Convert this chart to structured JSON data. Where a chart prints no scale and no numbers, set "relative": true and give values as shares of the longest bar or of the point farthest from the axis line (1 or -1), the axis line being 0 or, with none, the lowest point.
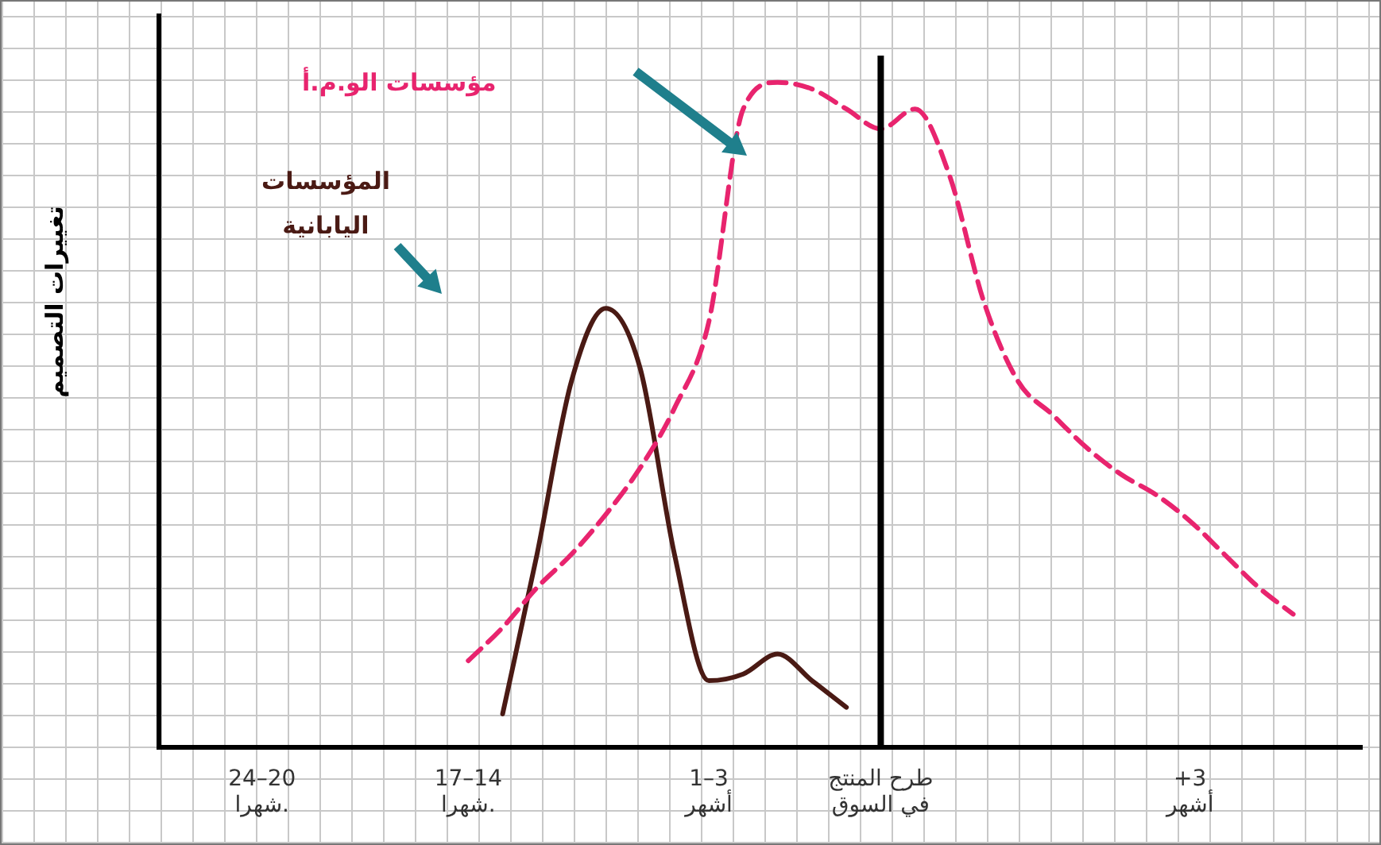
{
  "chart_data": {
    "type": "line",
    "relative": true,
    "ylabel": "تغييرات التصميم",
    "marker": "none",
    "legend": false,
    "categories": [
      null,
      null,
      null,
      "24–20\nشهرا.",
      null,
      null,
      null,
      null,
      null,
      "17–14\nشهرا.",
      null,
      null,
      null,
      null,
      null,
      null,
      "1–3\nأشهر",
      null,
      null,
      null,
      null,
      "طرح المنتج\nفي السوق",
      null,
      null,
      null,
      null,
      null,
      null,
      null,
      null,
      "+3\nأشهر",
      null,
      null,
      null,
      null,
      null
    ],
    "series": [
      {
        "name": "مؤسسات الو.م.أ",
        "color": "#e8246e",
        "line_style": "dashed",
        "values": [
          null,
          null,
          null,
          null,
          null,
          null,
          null,
          null,
          null,
          0.13,
          0.18,
          0.24,
          0.29,
          0.35,
          0.42,
          0.51,
          0.64,
          0.96,
          1.0,
          0.99,
          0.96,
          0.93,
          0.96,
          0.86,
          0.67,
          0.55,
          0.5,
          0.45,
          0.41,
          0.38,
          0.34,
          0.29,
          0.24,
          0.2,
          null,
          null
        ]
      },
      {
        "name": "المؤسسات اليابانية",
        "color": "#4a1a14",
        "line_style": "solid",
        "values": [
          null,
          null,
          null,
          null,
          null,
          null,
          null,
          null,
          null,
          null,
          0.05,
          0.29,
          0.55,
          0.66,
          0.57,
          0.29,
          0.1,
          0.11,
          0.14,
          0.1,
          0.06,
          null,
          null,
          null,
          null,
          null,
          null,
          null,
          null,
          null,
          null,
          null,
          null,
          null,
          null,
          null
        ]
      }
    ],
    "ref_lines": [
      {
        "axis": "x",
        "value": "طرح المنتج\nفي السوق",
        "color": "#000000"
      }
    ]
  }
}
